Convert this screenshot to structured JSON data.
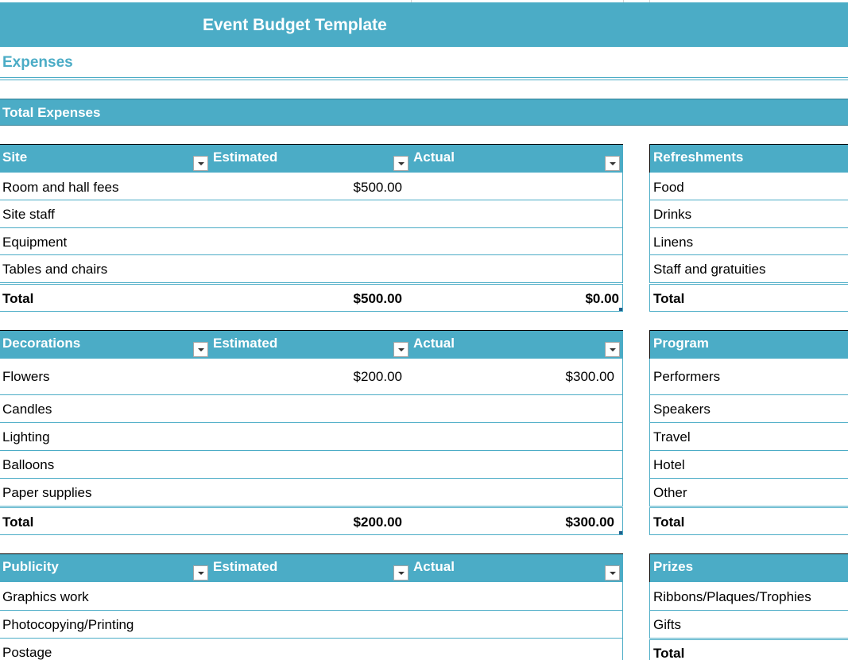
{
  "sheet": {
    "title": "Event Budget Template",
    "section_heading": "Expenses",
    "total_band_label": "Total Expenses"
  },
  "site": {
    "headers": [
      "Site",
      "Estimated",
      "Actual"
    ],
    "rows": [
      {
        "label": "Room and hall fees",
        "estimated": "$500.00",
        "actual": ""
      },
      {
        "label": "Site staff",
        "estimated": "",
        "actual": ""
      },
      {
        "label": "Equipment",
        "estimated": "",
        "actual": ""
      },
      {
        "label": "Tables and chairs",
        "estimated": "",
        "actual": ""
      }
    ],
    "total": {
      "label": "Total",
      "estimated": "$500.00",
      "actual": "$0.00"
    }
  },
  "decorations": {
    "headers": [
      "Decorations",
      "Estimated",
      "Actual"
    ],
    "rows": [
      {
        "label": "Flowers",
        "estimated": "$200.00",
        "actual": "$300.00"
      },
      {
        "label": "Candles",
        "estimated": "",
        "actual": ""
      },
      {
        "label": "Lighting",
        "estimated": "",
        "actual": ""
      },
      {
        "label": "Balloons",
        "estimated": "",
        "actual": ""
      },
      {
        "label": "Paper supplies",
        "estimated": "",
        "actual": ""
      }
    ],
    "total": {
      "label": "Total",
      "estimated": "$200.00",
      "actual": "$300.00"
    }
  },
  "publicity": {
    "headers": [
      "Publicity",
      "Estimated",
      "Actual"
    ],
    "rows": [
      {
        "label": "Graphics work",
        "estimated": "",
        "actual": ""
      },
      {
        "label": "Photocopying/Printing",
        "estimated": "",
        "actual": ""
      },
      {
        "label": "Postage",
        "estimated": "",
        "actual": ""
      }
    ]
  },
  "refreshments": {
    "header": "Refreshments",
    "rows": [
      "Food",
      "Drinks",
      "Linens",
      "Staff and gratuities"
    ],
    "total": "Total"
  },
  "program": {
    "header": "Program",
    "rows": [
      "Performers",
      "Speakers",
      "Travel",
      "Hotel",
      "Other"
    ],
    "total": "Total"
  },
  "prizes": {
    "header": "Prizes",
    "rows": [
      "Ribbons/Plaques/Trophies",
      "Gifts"
    ],
    "total": "Total"
  },
  "colors": {
    "accent": "#4bacc6",
    "header_text": "#ffffff"
  },
  "icons": {
    "filter_dropdown": "chevron-down-icon"
  }
}
